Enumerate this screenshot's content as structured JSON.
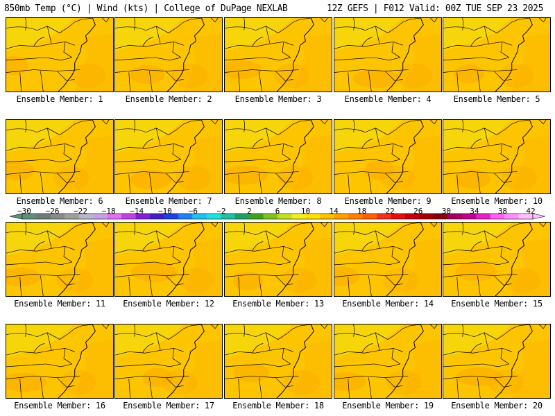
{
  "header": {
    "left": "850mb Temp (°C) | Wind (kts) | College of DuPage NEXLAB",
    "right": "12Z GEFS | F012 Valid: 00Z TUE SEP 23 2025"
  },
  "panels": [
    {
      "label": "Ensemble Member: 1"
    },
    {
      "label": "Ensemble Member: 2"
    },
    {
      "label": "Ensemble Member: 3"
    },
    {
      "label": "Ensemble Member: 4"
    },
    {
      "label": "Ensemble Member: 5"
    },
    {
      "label": "Ensemble Member: 6"
    },
    {
      "label": "Ensemble Member: 7"
    },
    {
      "label": "Ensemble Member: 8"
    },
    {
      "label": "Ensemble Member: 9"
    },
    {
      "label": "Ensemble Member: 10"
    },
    {
      "label": "Ensemble Member: 11"
    },
    {
      "label": "Ensemble Member: 12"
    },
    {
      "label": "Ensemble Member: 13"
    },
    {
      "label": "Ensemble Member: 14"
    },
    {
      "label": "Ensemble Member: 15"
    },
    {
      "label": "Ensemble Member: 16"
    },
    {
      "label": "Ensemble Member: 17"
    },
    {
      "label": "Ensemble Member: 18"
    },
    {
      "label": "Ensemble Member: 19"
    },
    {
      "label": "Ensemble Member: 20"
    }
  ],
  "colorbar": {
    "labels": [
      "−30",
      "−26",
      "−22",
      "−18",
      "−14",
      "−10",
      "−6",
      "−2",
      "2",
      "6",
      "10",
      "14",
      "18",
      "22",
      "26",
      "30",
      "34",
      "38",
      "42"
    ],
    "colors": [
      "#5f8f7a",
      "#6e7a78",
      "#8a8a8a",
      "#a0a0a0",
      "#b8b8c8",
      "#c8a0e0",
      "#e070f0",
      "#c040e0",
      "#8020d0",
      "#4020c0",
      "#2040e0",
      "#2080f0",
      "#20c0f0",
      "#20e0e0",
      "#20c0a0",
      "#20a060",
      "#40a020",
      "#80c020",
      "#c0e020",
      "#f0f020",
      "#ffe000",
      "#ffc000",
      "#ffa000",
      "#ff8000",
      "#ff6000",
      "#f03020",
      "#e01010",
      "#c00010",
      "#a00000",
      "#800010",
      "#a00060",
      "#c00090",
      "#e020c0",
      "#ff60f0",
      "#ff90ff",
      "#ffc0ff"
    ],
    "map_fill": "#fdc500",
    "warm_fill": "#fbb000",
    "cool_fill": "#f4dc10"
  }
}
